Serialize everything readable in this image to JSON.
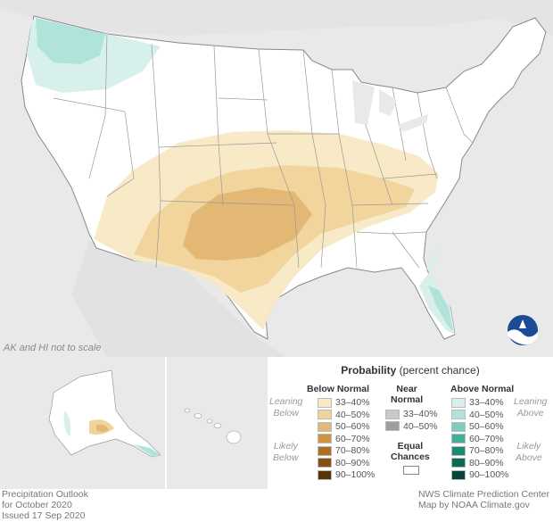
{
  "map": {
    "scale_note": "AK and HI not to scale",
    "logo_text": "NOAA"
  },
  "legend": {
    "title_bold": "Probability",
    "title_rest": " (percent chance)",
    "below_header": "Below Normal",
    "near_header_line1": "Near",
    "near_header_line2": "Normal",
    "above_header": "Above Normal",
    "leaning_below": [
      "Leaning",
      "Below"
    ],
    "likely_below": [
      "Likely",
      "Below"
    ],
    "leaning_above": [
      "Leaning",
      "Above"
    ],
    "likely_above": [
      "Likely",
      "Above"
    ],
    "equal_chances": [
      "Equal",
      "Chances"
    ],
    "below_items": [
      {
        "label": "33–40%",
        "color": "#f9e9c4"
      },
      {
        "label": "40–50%",
        "color": "#f0d49a"
      },
      {
        "label": "50–60%",
        "color": "#e2b874"
      },
      {
        "label": "60–70%",
        "color": "#cf9440"
      },
      {
        "label": "70–80%",
        "color": "#b06e21"
      },
      {
        "label": "80–90%",
        "color": "#8a4f11"
      },
      {
        "label": "90–100%",
        "color": "#5c3305"
      }
    ],
    "near_items": [
      {
        "label": "33–40%",
        "color": "#c8c8c8"
      },
      {
        "label": "40–50%",
        "color": "#9e9e9e"
      }
    ],
    "above_items": [
      {
        "label": "33–40%",
        "color": "#d7f0ec"
      },
      {
        "label": "40–50%",
        "color": "#b0e3da"
      },
      {
        "label": "50–60%",
        "color": "#7ecdbc"
      },
      {
        "label": "60–70%",
        "color": "#44ad96"
      },
      {
        "label": "70–80%",
        "color": "#1a8a72"
      },
      {
        "label": "80–90%",
        "color": "#0c6a55"
      },
      {
        "label": "90–100%",
        "color": "#05463a"
      }
    ]
  },
  "footer": {
    "left_line1": "Precipitation Outlook",
    "left_line2": "for October 2020",
    "left_line3": "Issued 17 Sep 2020",
    "right_line1": "NWS Climate Prediction Center",
    "right_line2": "Map by NOAA Climate.gov"
  },
  "colors": {
    "land": "#ffffff",
    "background": "#e9e9e9",
    "border": "#888888"
  }
}
